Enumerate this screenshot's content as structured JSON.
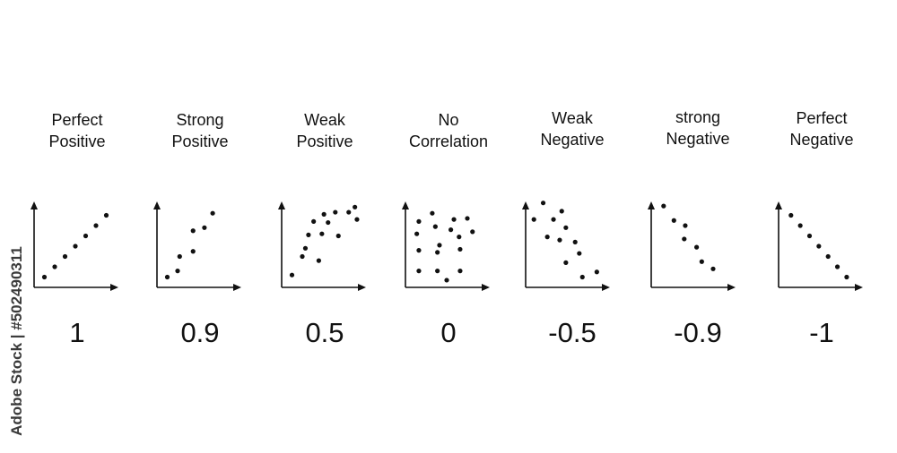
{
  "watermark": "Adobe Stock | #502490311",
  "colors": {
    "ink": "#111111",
    "background": "#ffffff"
  },
  "panels": [
    {
      "title_lines": [
        "Perfect",
        "Positive"
      ],
      "value": "1",
      "points": [
        [
          1,
          1
        ],
        [
          2,
          2
        ],
        [
          3,
          3
        ],
        [
          4,
          4
        ],
        [
          5,
          5
        ],
        [
          6,
          6
        ],
        [
          7,
          7
        ]
      ]
    },
    {
      "title_lines": [
        "Strong",
        "Positive"
      ],
      "value": "0.9",
      "points": [
        [
          1,
          1
        ],
        [
          2,
          1.6
        ],
        [
          2.2,
          3
        ],
        [
          3.5,
          3.5
        ],
        [
          3.5,
          5.5
        ],
        [
          4.6,
          5.8
        ],
        [
          5.4,
          7.2
        ]
      ]
    },
    {
      "title_lines": [
        "Weak",
        "Positive"
      ],
      "value": "0.5",
      "points": [
        [
          1,
          1.2
        ],
        [
          2,
          3
        ],
        [
          2.3,
          3.8
        ],
        [
          2.6,
          5.1
        ],
        [
          3.6,
          2.6
        ],
        [
          3.1,
          6.4
        ],
        [
          3.9,
          5.2
        ],
        [
          4.5,
          6.3
        ],
        [
          5.2,
          7.3
        ],
        [
          5.5,
          5.0
        ],
        [
          6.5,
          7.3
        ],
        [
          7.1,
          7.8
        ],
        [
          7.3,
          6.6
        ],
        [
          4.1,
          7.1
        ]
      ]
    },
    {
      "title_lines": [
        "No",
        "Correlation"
      ],
      "value": "0",
      "points": [
        [
          1.3,
          6.4
        ],
        [
          2.6,
          7.2
        ],
        [
          4.7,
          6.6
        ],
        [
          6,
          6.7
        ],
        [
          2.9,
          5.9
        ],
        [
          4.4,
          5.6
        ],
        [
          1.1,
          5.2
        ],
        [
          5.2,
          4.9
        ],
        [
          6.5,
          5.4
        ],
        [
          3.3,
          4.1
        ],
        [
          1.3,
          3.6
        ],
        [
          3.1,
          3.4
        ],
        [
          5.3,
          3.7
        ],
        [
          1.3,
          1.6
        ],
        [
          3.1,
          1.6
        ],
        [
          5.3,
          1.6
        ],
        [
          4,
          0.7
        ]
      ]
    },
    {
      "title_lines": [
        "Weak",
        "Negative"
      ],
      "value": "-0.5",
      "points": [
        [
          1.7,
          8.2
        ],
        [
          3.5,
          7.4
        ],
        [
          0.8,
          6.6
        ],
        [
          2.7,
          6.6
        ],
        [
          3.9,
          5.8
        ],
        [
          2.1,
          4.9
        ],
        [
          3.3,
          4.6
        ],
        [
          4.8,
          4.4
        ],
        [
          5.2,
          3.3
        ],
        [
          3.9,
          2.4
        ],
        [
          6.9,
          1.5
        ],
        [
          5.5,
          1.0
        ]
      ]
    },
    {
      "title_lines": [
        "strong",
        "Negative"
      ],
      "value": "-0.9",
      "points": [
        [
          1.2,
          7.9
        ],
        [
          2.2,
          6.5
        ],
        [
          3.3,
          6.0
        ],
        [
          3.2,
          4.7
        ],
        [
          4.4,
          3.9
        ],
        [
          4.9,
          2.5
        ],
        [
          6.0,
          1.8
        ]
      ]
    },
    {
      "title_lines": [
        "Perfect",
        "Negative"
      ],
      "value": "-1",
      "points": [
        [
          1.2,
          7
        ],
        [
          2.1,
          6
        ],
        [
          3,
          5
        ],
        [
          3.9,
          4
        ],
        [
          4.8,
          3
        ],
        [
          5.7,
          2
        ],
        [
          6.6,
          1
        ]
      ]
    }
  ]
}
